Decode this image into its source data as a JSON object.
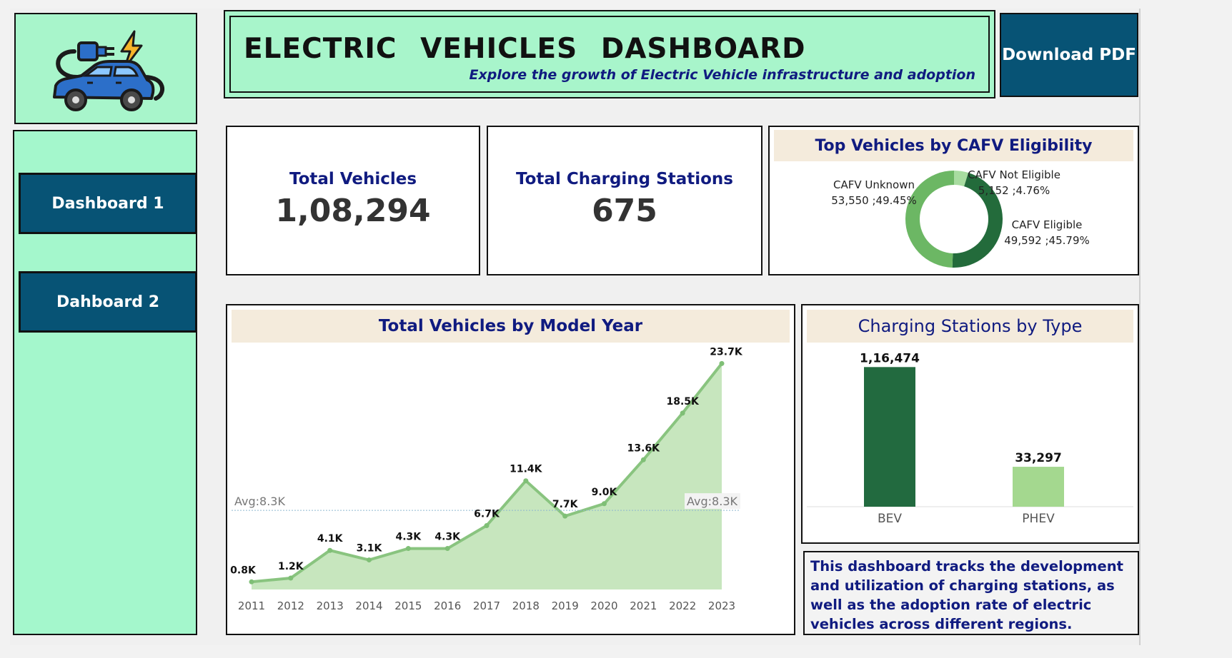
{
  "header": {
    "title": "ELECTRIC VEHICLES DASHBOARD",
    "subtitle": "Explore the growth of Electric Vehicle infrastructure and adoption"
  },
  "download_label": "Download PDF",
  "nav": [
    {
      "label": "Dashboard 1"
    },
    {
      "label": "Dahboard 2"
    }
  ],
  "kpis": [
    {
      "label": "Total Vehicles",
      "value": "1,08,294"
    },
    {
      "label": "Total Charging Stations",
      "value": "675"
    }
  ],
  "description": "This dashboard tracks the development and utilization of charging stations, as well as the adoption rate of electric vehicles across different regions.",
  "colors": {
    "mint": "#a8f5cb",
    "navy_button": "#075375",
    "title_blue": "#101b80",
    "bev_green": "#226a3f",
    "phev_green": "#a4d88f",
    "area_line": "#89c47f",
    "area_fill": "#c7e6be"
  },
  "icons": {
    "logo": "ev-car-plug-icon"
  },
  "chart_data": [
    {
      "type": "area",
      "title": "Total Vehicles by Model Year",
      "x": [
        "2011",
        "2012",
        "2013",
        "2014",
        "2015",
        "2016",
        "2017",
        "2018",
        "2019",
        "2020",
        "2021",
        "2022",
        "2023"
      ],
      "values": [
        800,
        1200,
        4100,
        3100,
        4300,
        4300,
        6700,
        11400,
        7700,
        9000,
        13600,
        18500,
        23700
      ],
      "data_labels": [
        "0.8K",
        "1.2K",
        "4.1K",
        "3.1K",
        "4.3K",
        "4.3K",
        "6.7K",
        "11.4K",
        "7.7K",
        "9.0K",
        "13.6K",
        "18.5K",
        "23.7K"
      ],
      "reference_line": {
        "label": "Avg:8.3K",
        "value": 8300
      },
      "ylim": [
        0,
        25000
      ],
      "grid": false
    },
    {
      "type": "pie",
      "title": "Top Vehicles by CAFV Eligibility",
      "slices": [
        {
          "label": "CAFV Not Eligible",
          "value": 5152,
          "text": "5,152 ;4.76%",
          "color": "#a8dca0"
        },
        {
          "label": "CAFV Eligible",
          "value": 49592,
          "text": "49,592 ;45.79%",
          "color": "#236b3b"
        },
        {
          "label": "CAFV Unknown",
          "value": 53550,
          "text": "53,550 ;49.45%",
          "color": "#6cb764"
        }
      ]
    },
    {
      "type": "bar",
      "title": "Charging Stations by Type",
      "categories": [
        "BEV",
        "PHEV"
      ],
      "values": [
        116474,
        33297
      ],
      "data_labels": [
        "1,16,474",
        "33,297"
      ],
      "colors": [
        "#226a3f",
        "#a4d88f"
      ],
      "ylim": [
        0,
        125000
      ]
    }
  ]
}
